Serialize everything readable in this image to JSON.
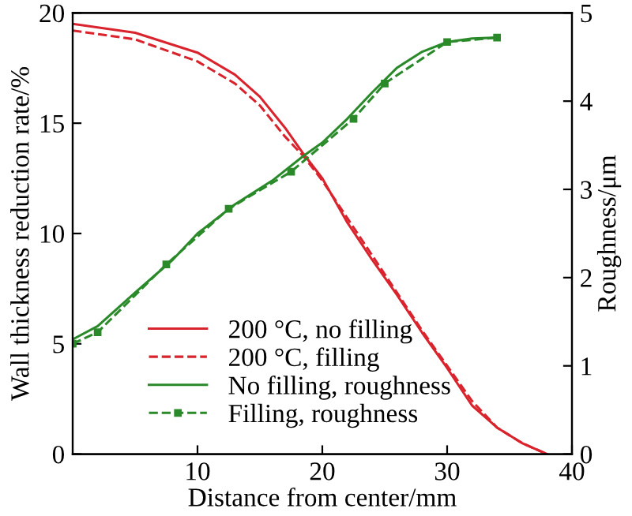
{
  "chart_data": {
    "type": "line",
    "xlabel": "Distance from center/mm",
    "ylabel": "Wall thickness reduction rate/%",
    "y2label": "Roughness/μm",
    "xlim": [
      0,
      40
    ],
    "xticks": [
      10,
      20,
      30,
      40
    ],
    "ylim": [
      0,
      20
    ],
    "yticks": [
      0,
      5,
      10,
      15,
      20
    ],
    "y2lim": [
      0,
      5
    ],
    "y2ticks": [
      0,
      1,
      2,
      3,
      4,
      5
    ],
    "grid": false,
    "legend": "bottom left",
    "series": [
      {
        "name": "200 °C, no filling",
        "color": "#d9232d",
        "line_style": "solid",
        "marker": "none",
        "x": [
          0,
          5,
          10,
          13,
          15,
          17,
          18.5,
          20,
          22,
          24,
          26,
          28,
          30,
          32,
          34,
          36,
          38
        ],
        "values": [
          19.5,
          19.1,
          18.2,
          17.2,
          16.2,
          14.8,
          13.6,
          12.5,
          10.5,
          8.8,
          7.2,
          5.5,
          3.9,
          2.2,
          1.2,
          0.5,
          0
        ]
      },
      {
        "name": "200 °C, filling",
        "color": "#d9232d",
        "line_style": "dashed",
        "marker": "none",
        "x": [
          0,
          5,
          10,
          13,
          15,
          17,
          18.5,
          20,
          22,
          24,
          26,
          28,
          30,
          32,
          34,
          36,
          38
        ],
        "values": [
          19.2,
          18.8,
          17.8,
          16.8,
          15.8,
          14.4,
          13.5,
          12.4,
          10.7,
          9.0,
          7.3,
          5.6,
          4.0,
          2.4,
          1.2,
          0.5,
          0
        ]
      },
      {
        "name": "No filling, roughness",
        "color": "#2a8a2a",
        "line_style": "solid",
        "marker": "none",
        "axis": "y2",
        "x": [
          0,
          2,
          5,
          8,
          10,
          13,
          16,
          18.5,
          20,
          22,
          24,
          26,
          28,
          30,
          32,
          34
        ],
        "values": [
          1.3,
          1.45,
          1.83,
          2.2,
          2.5,
          2.83,
          3.1,
          3.38,
          3.53,
          3.8,
          4.1,
          4.38,
          4.56,
          4.67,
          4.71,
          4.72
        ]
      },
      {
        "name": "Filling, roughness",
        "color": "#2a8a2a",
        "line_style": "dashed",
        "marker": "square",
        "axis": "y2",
        "x": [
          0,
          2,
          7.5,
          12.5,
          17.5,
          22.5,
          25,
          30,
          34
        ],
        "values": [
          1.25,
          1.38,
          2.15,
          2.78,
          3.2,
          3.8,
          4.2,
          4.67,
          4.72
        ]
      }
    ]
  }
}
